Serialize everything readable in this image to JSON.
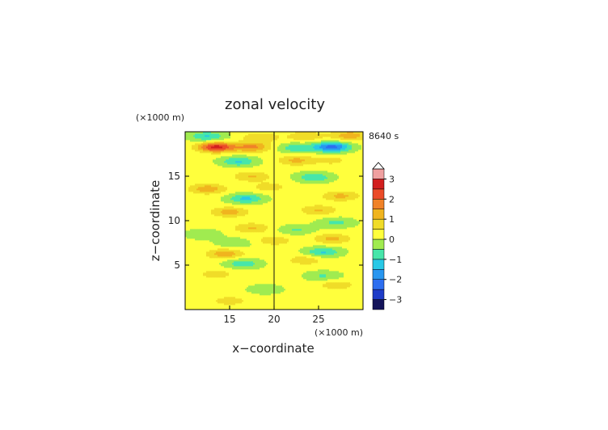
{
  "chart_data": {
    "type": "heatmap",
    "title": "zonal velocity",
    "time_label": "8640 s",
    "xlabel": "x−coordinate",
    "ylabel": "z−coordinate",
    "x_unit": "(×1000 m)",
    "y_unit": "(×1000 m)",
    "xlim": [
      10,
      30
    ],
    "ylim": [
      0,
      20
    ],
    "xticks": [
      "15",
      "20",
      "25"
    ],
    "yticks": [
      "5",
      "10",
      "15"
    ],
    "xtick_values": [
      15,
      20,
      25
    ],
    "ytick_values": [
      5,
      10,
      15
    ],
    "colorbar": {
      "labels": [
        "3",
        "2",
        "1",
        "0",
        "−1",
        "−2",
        "−3"
      ],
      "label_values": [
        3,
        2,
        1,
        0,
        -1,
        -2,
        -3
      ],
      "levels": [
        -3.5,
        -3,
        -2.5,
        -2,
        -1.5,
        -1,
        -0.5,
        0,
        0.5,
        1,
        1.5,
        2,
        2.5,
        3,
        3.5
      ],
      "colors": [
        "#14145a",
        "#1e3cc8",
        "#2d6ef0",
        "#2896f0",
        "#28c8e6",
        "#46e6aa",
        "#a0eb50",
        "#ffff3c",
        "#f0dc28",
        "#f0b41e",
        "#f08228",
        "#eb4b28",
        "#d21e1e",
        "#f0a0a0"
      ],
      "extend": "max"
    },
    "features": [
      {
        "x": 13.5,
        "z": 18.3,
        "value": 2.6
      },
      {
        "x": 17.5,
        "z": 18.3,
        "value": 1.5
      },
      {
        "x": 26.5,
        "z": 18.3,
        "value": -2.4
      },
      {
        "x": 22.5,
        "z": 18.2,
        "value": -1.0
      },
      {
        "x": 12.5,
        "z": 19.5,
        "value": -1.2
      },
      {
        "x": 23.5,
        "z": 19.5,
        "value": 0.8
      },
      {
        "x": 28.5,
        "z": 19.6,
        "value": 1.2
      },
      {
        "x": 18.5,
        "z": 19.4,
        "value": 0.8
      },
      {
        "x": 16.0,
        "z": 16.7,
        "value": -1.2
      },
      {
        "x": 22.5,
        "z": 16.8,
        "value": 1.0
      },
      {
        "x": 26.5,
        "z": 16.8,
        "value": 0.5
      },
      {
        "x": 17.5,
        "z": 15.0,
        "value": 0.9
      },
      {
        "x": 24.5,
        "z": 14.9,
        "value": -1.1
      },
      {
        "x": 12.5,
        "z": 13.6,
        "value": 1.2
      },
      {
        "x": 19.5,
        "z": 13.8,
        "value": 0.6
      },
      {
        "x": 16.8,
        "z": 12.5,
        "value": -1.3
      },
      {
        "x": 27.5,
        "z": 12.8,
        "value": 1.0
      },
      {
        "x": 15.0,
        "z": 11.0,
        "value": 1.1
      },
      {
        "x": 25.0,
        "z": 11.2,
        "value": 0.9
      },
      {
        "x": 27.0,
        "z": 9.8,
        "value": -0.8
      },
      {
        "x": 17.5,
        "z": 9.2,
        "value": 0.9
      },
      {
        "x": 22.5,
        "z": 9.0,
        "value": -0.7
      },
      {
        "x": 12.0,
        "z": 8.5,
        "value": -0.6
      },
      {
        "x": 26.5,
        "z": 8.0,
        "value": 1.0
      },
      {
        "x": 15.5,
        "z": 7.5,
        "value": -0.6
      },
      {
        "x": 20.0,
        "z": 7.8,
        "value": 0.7
      },
      {
        "x": 14.5,
        "z": 6.3,
        "value": 1.2
      },
      {
        "x": 25.5,
        "z": 6.5,
        "value": -1.2
      },
      {
        "x": 16.5,
        "z": 5.2,
        "value": -1.0
      },
      {
        "x": 23.5,
        "z": 5.6,
        "value": 0.7
      },
      {
        "x": 13.5,
        "z": 4.0,
        "value": 0.6
      },
      {
        "x": 25.5,
        "z": 3.8,
        "value": -0.7
      },
      {
        "x": 27.0,
        "z": 2.8,
        "value": 0.7
      },
      {
        "x": 19.0,
        "z": 2.3,
        "value": -0.5
      },
      {
        "x": 15.0,
        "z": 1.0,
        "value": 0.6
      }
    ]
  }
}
